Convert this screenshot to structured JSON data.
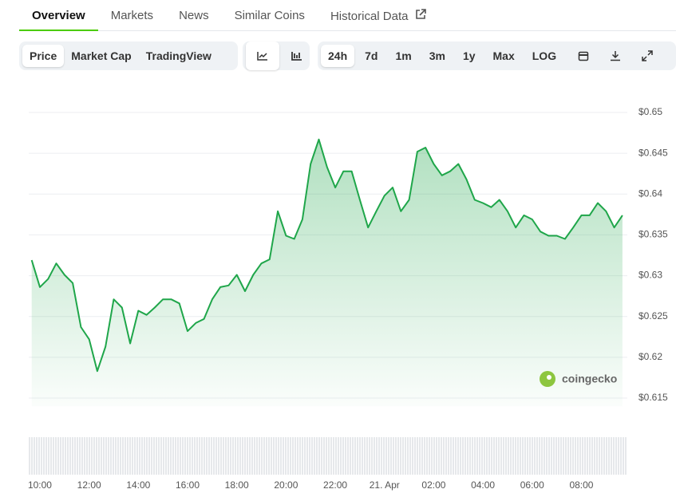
{
  "tabs": [
    "Overview",
    "Markets",
    "News",
    "Similar Coins",
    "Historical Data"
  ],
  "chart_types": [
    "Price",
    "Market Cap",
    "TradingView"
  ],
  "ranges": [
    "24h",
    "7d",
    "1m",
    "3m",
    "1y",
    "Max",
    "LOG"
  ],
  "watermark": "coingecko",
  "chart_data": {
    "type": "line",
    "color": "#1fa64a",
    "grid": true,
    "categories": [
      null,
      "10:00",
      null,
      null,
      null,
      null,
      null,
      "12:00",
      null,
      null,
      null,
      null,
      null,
      "14:00",
      null,
      null,
      null,
      null,
      null,
      "16:00",
      null,
      null,
      null,
      null,
      null,
      "18:00",
      null,
      null,
      null,
      null,
      null,
      "20:00",
      null,
      null,
      null,
      null,
      null,
      "22:00",
      null,
      null,
      null,
      null,
      null,
      "21. Apr",
      null,
      null,
      null,
      null,
      null,
      "02:00",
      null,
      null,
      null,
      null,
      null,
      "04:00",
      null,
      null,
      null,
      null,
      null,
      "06:00",
      null,
      null,
      null,
      null,
      null,
      "08:00",
      null,
      null,
      null,
      null,
      null
    ],
    "values": [
      0.6319,
      0.6286,
      0.6296,
      0.6315,
      0.6301,
      0.6291,
      0.6237,
      0.6222,
      0.6183,
      0.6213,
      0.6271,
      0.6261,
      0.6217,
      0.6257,
      0.6252,
      0.6261,
      0.6271,
      0.6271,
      0.6266,
      0.6232,
      0.6242,
      0.6247,
      0.6271,
      0.6286,
      0.6288,
      0.6301,
      0.6281,
      0.6301,
      0.6315,
      0.632,
      0.6379,
      0.6349,
      0.6345,
      0.6369,
      0.6437,
      0.6467,
      0.6433,
      0.6408,
      0.6428,
      0.6428,
      0.6393,
      0.6359,
      0.6379,
      0.6398,
      0.6408,
      0.6379,
      0.6393,
      0.6452,
      0.6457,
      0.6437,
      0.6423,
      0.6428,
      0.6437,
      0.6418,
      0.6393,
      0.6389,
      0.6384,
      0.6393,
      0.6379,
      0.6359,
      0.6374,
      0.6369,
      0.6354,
      0.6349,
      0.6349,
      0.6345,
      0.6359,
      0.6374,
      0.6374,
      0.6389,
      0.6379,
      0.6359,
      0.6374
    ],
    "ylim": [
      0.614,
      0.651
    ],
    "yticks": [
      {
        "value": 0.615,
        "label": "$0.615"
      },
      {
        "value": 0.62,
        "label": "$0.62"
      },
      {
        "value": 0.625,
        "label": "$0.625"
      },
      {
        "value": 0.63,
        "label": "$0.63"
      },
      {
        "value": 0.635,
        "label": "$0.635"
      },
      {
        "value": 0.64,
        "label": "$0.64"
      },
      {
        "value": 0.645,
        "label": "$0.645"
      },
      {
        "value": 0.65,
        "label": "$0.65"
      }
    ]
  }
}
